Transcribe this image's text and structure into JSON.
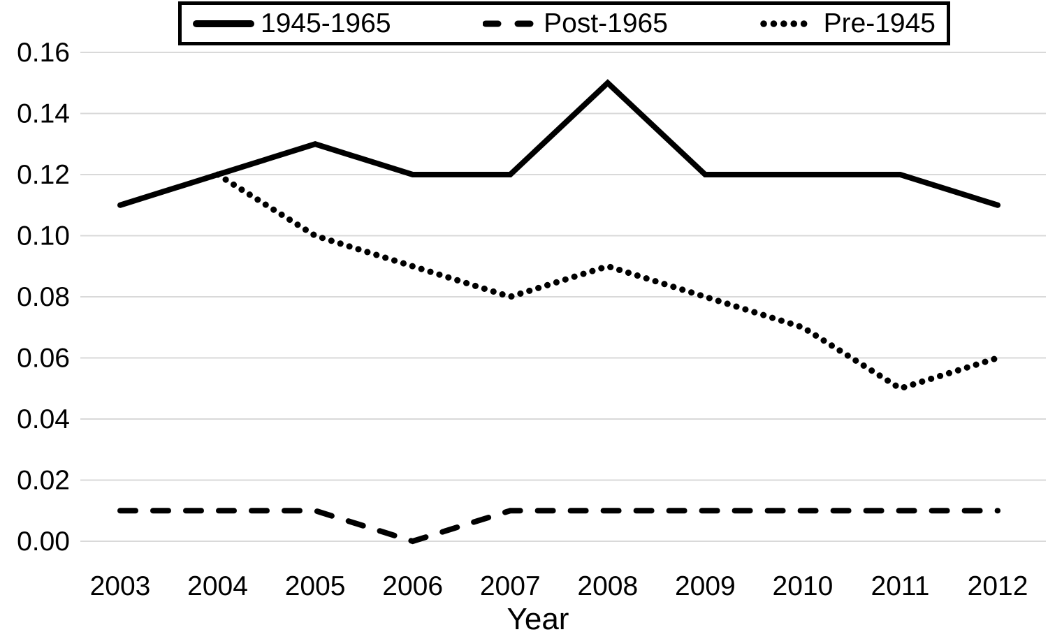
{
  "chart_data": {
    "type": "line",
    "title": "",
    "xlabel": "Year",
    "ylabel": "",
    "x": [
      2003,
      2004,
      2005,
      2006,
      2007,
      2008,
      2009,
      2010,
      2011,
      2012
    ],
    "x_tick_labels": [
      "2003",
      "2004",
      "2005",
      "2006",
      "2007",
      "2008",
      "2009",
      "2010",
      "2011",
      "2012"
    ],
    "y_tick_labels": [
      "0.00",
      "0.02",
      "0.04",
      "0.06",
      "0.08",
      "0.10",
      "0.12",
      "0.14",
      "0.16"
    ],
    "ylim": [
      0,
      0.16
    ],
    "ystep": 0.02,
    "grid": "horizontal",
    "legend_position": "top",
    "series": [
      {
        "name": "1945-1965",
        "style": "solid",
        "values": [
          0.11,
          0.12,
          0.13,
          0.12,
          0.12,
          0.15,
          0.12,
          0.12,
          0.12,
          0.11
        ]
      },
      {
        "name": "Post-1965",
        "style": "dashed",
        "values": [
          0.01,
          0.01,
          0.01,
          0.0,
          0.01,
          0.01,
          0.01,
          0.01,
          0.01,
          0.01
        ]
      },
      {
        "name": "Pre-1945",
        "style": "dotted",
        "values": [
          null,
          0.12,
          0.1,
          0.09,
          0.08,
          0.09,
          0.08,
          0.07,
          0.05,
          0.06
        ]
      }
    ],
    "colors": {
      "line": "#000000",
      "gridline": "#d9d9d9",
      "background": "#ffffff",
      "text": "#000000"
    }
  }
}
